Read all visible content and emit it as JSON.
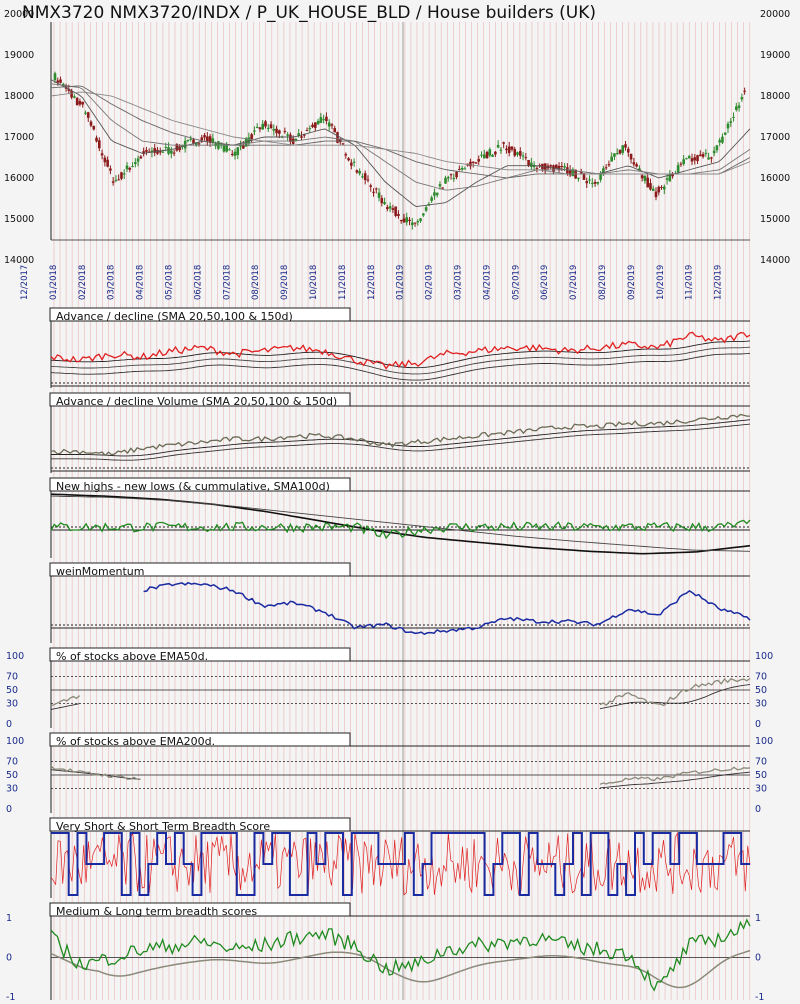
{
  "title": "NMX3720 NMX3720/INDX / P_UK_HOUSE_BLD / House builders (UK)",
  "colors": {
    "background": "#f4f4f4",
    "grid_red": "#e79a9a",
    "up_candle": "#2e8b2e",
    "down_candle": "#8b1a1a",
    "axis_blue": "#1a2a8a",
    "ad_red": "#e02020",
    "momentum_blue": "#1a2aa0",
    "green": "#1f8a1f",
    "gray": "#8a8a7a"
  },
  "price_axis": {
    "left_ticks": [
      "20000",
      "19000",
      "18000",
      "17000",
      "16000",
      "15000",
      "14000"
    ],
    "right_ticks": [
      "20000",
      "19000",
      "18000",
      "17000",
      "16000",
      "15000",
      "14000"
    ]
  },
  "dates": [
    "12/2017",
    "01/2018",
    "02/2018",
    "03/2018",
    "04/2018",
    "05/2018",
    "06/2018",
    "07/2018",
    "08/2018",
    "09/2018",
    "10/2018",
    "11/2018",
    "12/2018",
    "01/2019",
    "02/2019",
    "03/2019",
    "04/2019",
    "05/2019",
    "06/2019",
    "07/2019",
    "08/2019",
    "09/2019",
    "10/2019",
    "11/2019",
    "12/2019"
  ],
  "panels": {
    "ad": {
      "title": "Advance / decline (SMA 20,50,100 & 150d)"
    },
    "adv": {
      "title": "Advance / decline Volume (SMA 20,50,100 & 150d)"
    },
    "hl": {
      "title": "New highs - new lows (& cummulative, SMA100d)"
    },
    "wm": {
      "title": "weinMomentum"
    },
    "ema50": {
      "title": "% of stocks above EMA50d.",
      "left_ticks": [
        "100",
        "70",
        "50",
        "30",
        "0"
      ],
      "right_ticks": [
        "100",
        "70",
        "50",
        "30",
        "0"
      ]
    },
    "ema200": {
      "title": "% of stocks above EMA200d.",
      "left_ticks": [
        "100",
        "70",
        "50",
        "30",
        "0"
      ],
      "right_ticks": [
        "100",
        "70",
        "50",
        "30",
        "0"
      ]
    },
    "vs": {
      "title": "Very Short & Short Term Breadth Score"
    },
    "ml": {
      "title": "Medium & Long term breadth scores",
      "left_ticks": [
        "1",
        "0",
        "-1"
      ],
      "right_ticks": [
        "1",
        "0",
        "-1"
      ]
    }
  },
  "chart_data": [
    {
      "type": "line",
      "name": "price",
      "title": "NMX3720 NMX3720/INDX / P_UK_HOUSE_BLD / House builders (UK)",
      "ylim": [
        14000,
        20000
      ],
      "x": [
        "01/2018",
        "02/2018",
        "03/2018",
        "04/2018",
        "05/2018",
        "06/2018",
        "07/2018",
        "08/2018",
        "09/2018",
        "10/2018",
        "11/2018",
        "12/2018",
        "01/2019",
        "02/2019",
        "03/2019",
        "04/2019",
        "05/2019",
        "06/2019",
        "07/2019",
        "08/2019",
        "09/2019",
        "10/2019",
        "11/2019",
        "12/2019"
      ],
      "series": [
        {
          "values": [
            18500,
            17700,
            15900,
            16600,
            16700,
            17000,
            16600,
            17300,
            16900,
            17500,
            16300,
            15400,
            14800,
            15900,
            16400,
            16800,
            16300,
            16200,
            15900,
            16800,
            15600,
            16400,
            16600,
            18100
          ]
        },
        {
          "values": [
            18400,
            18000,
            16900,
            16600,
            16700,
            16900,
            16800,
            17000,
            17000,
            17200,
            16800,
            15900,
            15300,
            15400,
            15900,
            16300,
            16300,
            16200,
            16100,
            16300,
            16000,
            16200,
            16400,
            17200
          ]
        },
        {
          "values": [
            18300,
            18200,
            17400,
            16900,
            16800,
            16800,
            16800,
            16900,
            16900,
            17000,
            16900,
            16400,
            15900,
            15700,
            15800,
            16000,
            16200,
            16200,
            16100,
            16200,
            16100,
            16100,
            16200,
            16700
          ]
        },
        {
          "values": [
            18200,
            18250,
            17800,
            17400,
            17100,
            16900,
            16800,
            16800,
            16800,
            16900,
            16900,
            16700,
            16400,
            16200,
            16100,
            16000,
            16100,
            16100,
            16100,
            16100,
            16100,
            16100,
            16100,
            16500
          ]
        },
        {
          "values": [
            18000,
            18100,
            18000,
            17700,
            17400,
            17200,
            17000,
            16900,
            16800,
            16800,
            16800,
            16700,
            16600,
            16400,
            16300,
            16200,
            16200,
            16100,
            16100,
            16100,
            16100,
            16100,
            16100,
            16400
          ]
        }
      ]
    },
    {
      "type": "line",
      "panel": "Advance / decline (SMA 20,50,100 & 150d)",
      "series": [
        {
          "values": [
            0.45,
            0.4,
            0.5,
            0.45,
            0.55,
            0.6,
            0.5,
            0.55,
            0.6,
            0.55,
            0.4,
            0.3,
            0.35,
            0.5,
            0.55,
            0.6,
            0.6,
            0.55,
            0.6,
            0.65,
            0.6,
            0.8,
            0.7,
            0.85
          ]
        }
      ]
    },
    {
      "type": "line",
      "panel": "Advance / decline Volume (SMA 20,50,100 & 150d)",
      "series": [
        {
          "values": [
            0.3,
            0.3,
            0.25,
            0.35,
            0.4,
            0.45,
            0.5,
            0.5,
            0.55,
            0.55,
            0.5,
            0.4,
            0.45,
            0.5,
            0.55,
            0.6,
            0.65,
            0.7,
            0.7,
            0.75,
            0.75,
            0.8,
            0.85,
            0.9
          ]
        }
      ]
    },
    {
      "type": "line",
      "panel": "New highs - new lows (& cummulative, SMA100d)",
      "series": [
        {
          "values": [
            0.45,
            0.45,
            0.45,
            0.45,
            0.45,
            0.45,
            0.45,
            0.45,
            0.45,
            0.45,
            0.45,
            0.3,
            0.4,
            0.45,
            0.45,
            0.45,
            0.45,
            0.45,
            0.45,
            0.45,
            0.45,
            0.45,
            0.45,
            0.5
          ]
        }
      ]
    },
    {
      "type": "line",
      "panel": "weinMomentum",
      "series": [
        {
          "values": [
            null,
            null,
            null,
            0.8,
            0.9,
            0.9,
            0.8,
            0.55,
            0.6,
            0.45,
            0.2,
            0.25,
            0.1,
            0.15,
            0.2,
            0.35,
            0.3,
            0.3,
            0.25,
            0.5,
            0.4,
            0.8,
            0.5,
            0.35
          ]
        }
      ]
    },
    {
      "type": "line",
      "panel": "% of stocks above EMA50d.",
      "ylim": [
        0,
        100
      ],
      "series": [
        {
          "values": [
            30,
            50,
            null,
            null,
            null,
            null,
            null,
            null,
            null,
            null,
            null,
            null,
            null,
            null,
            null,
            null,
            null,
            null,
            30,
            50,
            30,
            60,
            70,
            75
          ]
        }
      ]
    },
    {
      "type": "line",
      "panel": "% of stocks above EMA200d.",
      "ylim": [
        0,
        100
      ],
      "series": [
        {
          "values": [
            70,
            60,
            55,
            50,
            null,
            null,
            null,
            null,
            null,
            null,
            null,
            null,
            null,
            null,
            null,
            null,
            null,
            null,
            40,
            50,
            50,
            60,
            65,
            70
          ]
        }
      ]
    },
    {
      "type": "line",
      "panel": "Very Short & Short Term Breadth Score",
      "series": [
        {
          "values": [
            0.5,
            0.8,
            0.2,
            0.6,
            0.9,
            0.3,
            0.5,
            0.9,
            0.4,
            0.7,
            0.2,
            0.5,
            0.1,
            0.6,
            0.3,
            0.8,
            0.4,
            0.9,
            0.5,
            0.2,
            0.7,
            0.4,
            0.8,
            0.6
          ]
        }
      ]
    },
    {
      "type": "line",
      "panel": "Medium & Long term breadth scores",
      "ylim": [
        -1,
        1
      ],
      "series": [
        {
          "values": [
            0.5,
            -0.2,
            0,
            0.2,
            0.3,
            0.4,
            0.2,
            0.3,
            0.5,
            0.6,
            0.3,
            -0.3,
            -0.2,
            0.2,
            0.3,
            0.4,
            0.5,
            0.3,
            0.2,
            0.1,
            -0.8,
            0.3,
            0.5,
            0.8
          ]
        }
      ]
    }
  ]
}
